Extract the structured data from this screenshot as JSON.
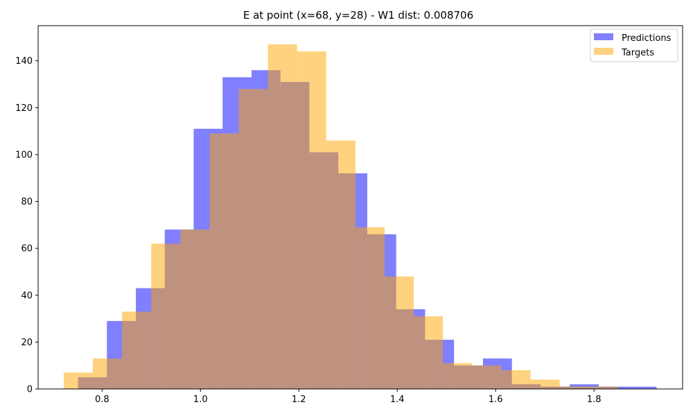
{
  "chart_data": {
    "type": "histogram",
    "title": "E at point (x=68, y=28) - W1 dist: 0.008706",
    "xlabel": "",
    "ylabel": "",
    "xlim": [
      0.67,
      1.98
    ],
    "ylim": [
      0,
      155
    ],
    "x_ticks": [
      "0.8",
      "1.0",
      "1.2",
      "1.4",
      "1.6",
      "1.8"
    ],
    "y_ticks": [
      "0",
      "20",
      "40",
      "60",
      "80",
      "100",
      "120",
      "140"
    ],
    "x_tick_values": [
      0.8,
      1.0,
      1.2,
      1.4,
      1.6,
      1.8
    ],
    "y_tick_values": [
      0,
      20,
      40,
      60,
      80,
      100,
      120,
      140
    ],
    "legend_position": "top-right",
    "grid": false,
    "series": [
      {
        "name": "Predictions",
        "color": "#0000ff",
        "opacity": 0.5,
        "bin_start": 0.751,
        "bin_width": 0.0588,
        "counts": [
          5,
          29,
          43,
          68,
          111,
          133,
          136,
          131,
          101,
          92,
          66,
          34,
          21,
          10,
          13,
          2,
          1,
          2,
          1,
          1
        ]
      },
      {
        "name": "Targets",
        "color": "#ffa500",
        "opacity": 0.5,
        "bin_start": 0.722,
        "bin_width": 0.0593,
        "counts": [
          7,
          13,
          33,
          62,
          68,
          109,
          128,
          147,
          144,
          106,
          69,
          48,
          31,
          11,
          10,
          8,
          4,
          1,
          1,
          0
        ]
      }
    ]
  }
}
